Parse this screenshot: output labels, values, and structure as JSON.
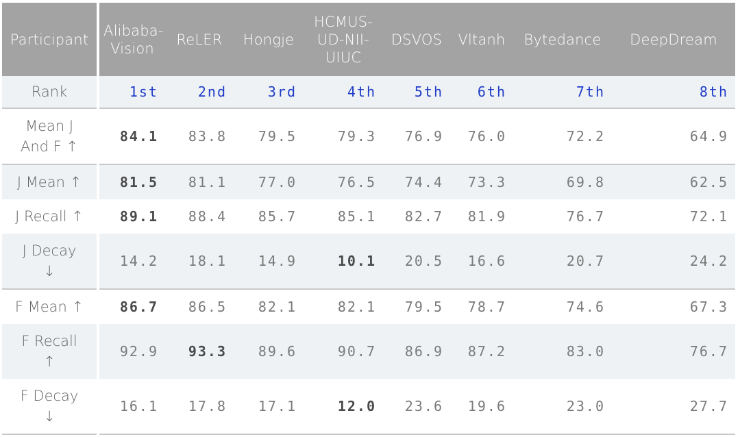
{
  "table": {
    "header": {
      "participant_label": "Participant",
      "participants": [
        [
          "Alibaba-",
          "Vision"
        ],
        [
          "ReLER"
        ],
        [
          "Hongje"
        ],
        [
          "HCMUS-",
          "UD-NII-",
          "UIUC"
        ],
        [
          "DSVOS"
        ],
        [
          "Vltanh"
        ],
        [
          "Bytedance"
        ],
        [
          "DeepDream"
        ]
      ]
    },
    "rank": {
      "label": "Rank",
      "values": [
        "1st",
        "2nd",
        "3rd",
        "4th",
        "5th",
        "6th",
        "7th",
        "8th"
      ]
    },
    "rows": [
      {
        "label": [
          "Mean J",
          "And F ↑"
        ],
        "values": [
          "84.1",
          "83.8",
          "79.5",
          "79.3",
          "76.9",
          "76.0",
          "72.2",
          "64.9"
        ],
        "best": [
          0
        ]
      },
      {
        "label": [
          "J Mean ↑"
        ],
        "values": [
          "81.5",
          "81.1",
          "77.0",
          "76.5",
          "74.4",
          "73.3",
          "69.8",
          "62.5"
        ],
        "best": [
          0
        ]
      },
      {
        "label": [
          "J Recall ↑"
        ],
        "values": [
          "89.1",
          "88.4",
          "85.7",
          "85.1",
          "82.7",
          "81.9",
          "76.7",
          "72.1"
        ],
        "best": [
          0
        ]
      },
      {
        "label": [
          "J Decay",
          "↓"
        ],
        "values": [
          "14.2",
          "18.1",
          "14.9",
          "10.1",
          "20.5",
          "16.6",
          "20.7",
          "24.2"
        ],
        "best": [
          3
        ]
      },
      {
        "label": [
          "F Mean ↑"
        ],
        "values": [
          "86.7",
          "86.5",
          "82.1",
          "82.1",
          "79.5",
          "78.7",
          "74.6",
          "67.3"
        ],
        "best": [
          0
        ]
      },
      {
        "label": [
          "F Recall",
          "↑"
        ],
        "values": [
          "92.9",
          "93.3",
          "89.6",
          "90.7",
          "86.9",
          "87.2",
          "83.0",
          "76.7"
        ],
        "best": [
          1
        ]
      },
      {
        "label": [
          "F Decay",
          "↓"
        ],
        "values": [
          "16.1",
          "17.8",
          "17.1",
          "12.0",
          "23.6",
          "19.6",
          "23.0",
          "27.7"
        ],
        "best": [
          3
        ]
      }
    ]
  }
}
